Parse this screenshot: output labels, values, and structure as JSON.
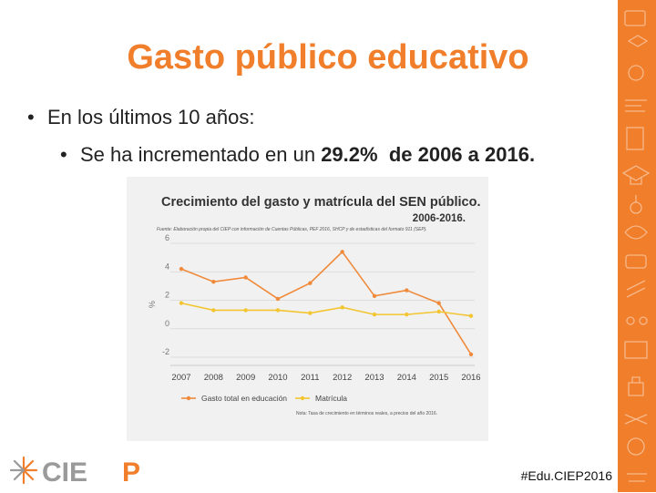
{
  "slide": {
    "title": "Gasto público educativo",
    "bullet1": "En los últimos 10 años:",
    "bullet2_prefix": "Se ha incrementado en un ",
    "bullet2_pct": "29.2%",
    "bullet2_suffix": "de 2006 a 2016.",
    "hashtag": "#Edu.CIEP2016",
    "logo_text": "CIEP"
  },
  "colors": {
    "accent": "#f07e2b",
    "series_gasto": "#f08a3a",
    "series_matricula": "#f2c531"
  },
  "chart_data": {
    "type": "line",
    "title": "Crecimiento del gasto y matrícula del SEN público.",
    "subtitle": "2006-2016.",
    "source": "Fuente: Elaboración propia del CIEP con información de Cuentas Públicas, PEF 2016, SHCP y de estadísticas del formato 911 (SEP).",
    "note": "Nota: Tasa de crecimiento en términos reales, a precios del año 2016.",
    "ylabel": "%",
    "xlabel": "",
    "ylim": [
      -2,
      6
    ],
    "yticks": [
      6,
      4,
      2,
      0,
      -2
    ],
    "categories": [
      "2007",
      "2008",
      "2009",
      "2010",
      "2011",
      "2012",
      "2013",
      "2014",
      "2015",
      "2016"
    ],
    "grid": true,
    "legend_position": "bottom",
    "series": [
      {
        "name": "Gasto total en educación",
        "color": "#f08a3a",
        "values": [
          4.2,
          3.3,
          3.6,
          2.1,
          3.2,
          5.4,
          2.3,
          2.7,
          1.8,
          -1.8
        ]
      },
      {
        "name": "Matrícula",
        "color": "#f2c531",
        "values": [
          1.8,
          1.3,
          1.3,
          1.3,
          1.1,
          1.5,
          1.0,
          1.0,
          1.2,
          0.9
        ]
      }
    ]
  }
}
